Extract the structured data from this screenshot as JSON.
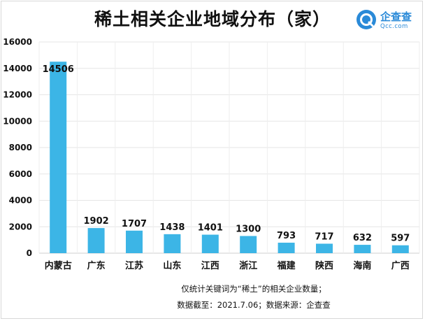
{
  "title": "稀土相关企业地域分布（家）",
  "brand": {
    "name": "企查查",
    "sub": "Qcc.com",
    "accent": "#2a8ad8"
  },
  "notes": {
    "line1": "仅统计关键词为“稀土”的相关企业数量；",
    "line2": "数据截至：2021.7.06；数据来源：企查查"
  },
  "chart_data": {
    "type": "bar",
    "title": "稀土相关企业地域分布（家）",
    "categories": [
      "内蒙古",
      "广东",
      "江苏",
      "山东",
      "江西",
      "浙江",
      "福建",
      "陕西",
      "海南",
      "广西"
    ],
    "values": [
      14506,
      1902,
      1707,
      1438,
      1401,
      1300,
      793,
      717,
      632,
      597
    ],
    "ylim": [
      0,
      16000
    ],
    "yticks": [
      0,
      2000,
      4000,
      6000,
      8000,
      10000,
      12000,
      14000,
      16000
    ],
    "bar_color": "#3cb5e6",
    "grid": true,
    "legend": "none"
  }
}
